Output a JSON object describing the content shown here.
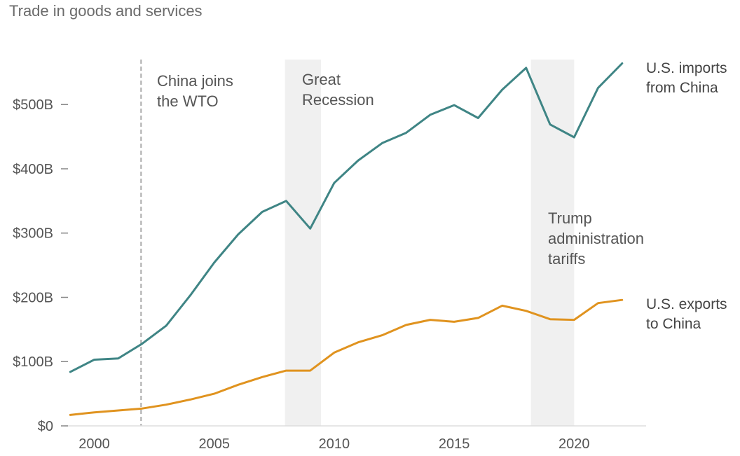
{
  "chart_data": {
    "type": "line",
    "title": "Trade in goods and services",
    "xlabel": "",
    "ylabel": "",
    "xlim": [
      1998.7,
      2023.0
    ],
    "ylim": [
      0,
      570
    ],
    "x_ticks": [
      2000,
      2005,
      2010,
      2015,
      2020
    ],
    "y_ticks": [
      {
        "value": 0,
        "label": "$0"
      },
      {
        "value": 100,
        "label": "$100B"
      },
      {
        "value": 200,
        "label": "$200B"
      },
      {
        "value": 300,
        "label": "$300B"
      },
      {
        "value": 400,
        "label": "$400B"
      },
      {
        "value": 500,
        "label": "$500B"
      }
    ],
    "x": [
      1999,
      2000,
      2001,
      2002,
      2003,
      2004,
      2005,
      2006,
      2007,
      2008,
      2009,
      2010,
      2011,
      2012,
      2013,
      2014,
      2015,
      2016,
      2017,
      2018,
      2019,
      2020,
      2021,
      2022
    ],
    "series": [
      {
        "name": "U.S. imports from China",
        "label_lines": [
          "U.S. imports",
          "from China"
        ],
        "color": "#3f8585",
        "values": [
          84,
          103,
          105,
          128,
          156,
          203,
          254,
          298,
          333,
          350,
          307,
          378,
          413,
          440,
          456,
          484,
          499,
          479,
          523,
          557,
          469,
          449,
          526,
          564
        ]
      },
      {
        "name": "U.S. exports to China",
        "label_lines": [
          "U.S. exports",
          "to China"
        ],
        "color": "#e0931f",
        "values": [
          17,
          21,
          24,
          27,
          33,
          41,
          50,
          64,
          76,
          86,
          86,
          114,
          130,
          141,
          157,
          165,
          162,
          168,
          187,
          179,
          166,
          165,
          191,
          196
        ]
      }
    ],
    "shaded_periods": [
      {
        "name": "Great Recession",
        "start": 2007.95,
        "end": 2009.45,
        "label_lines": [
          "Great",
          "Recession"
        ]
      },
      {
        "name": "Trump administration tariffs",
        "start": 2018.2,
        "end": 2020.0,
        "label_lines": [
          "Trump",
          "administration",
          "tariffs"
        ]
      }
    ],
    "reference_lines": [
      {
        "name": "China joins the WTO",
        "x": 2001.95,
        "label_lines": [
          "China joins",
          "the WTO"
        ]
      }
    ]
  }
}
